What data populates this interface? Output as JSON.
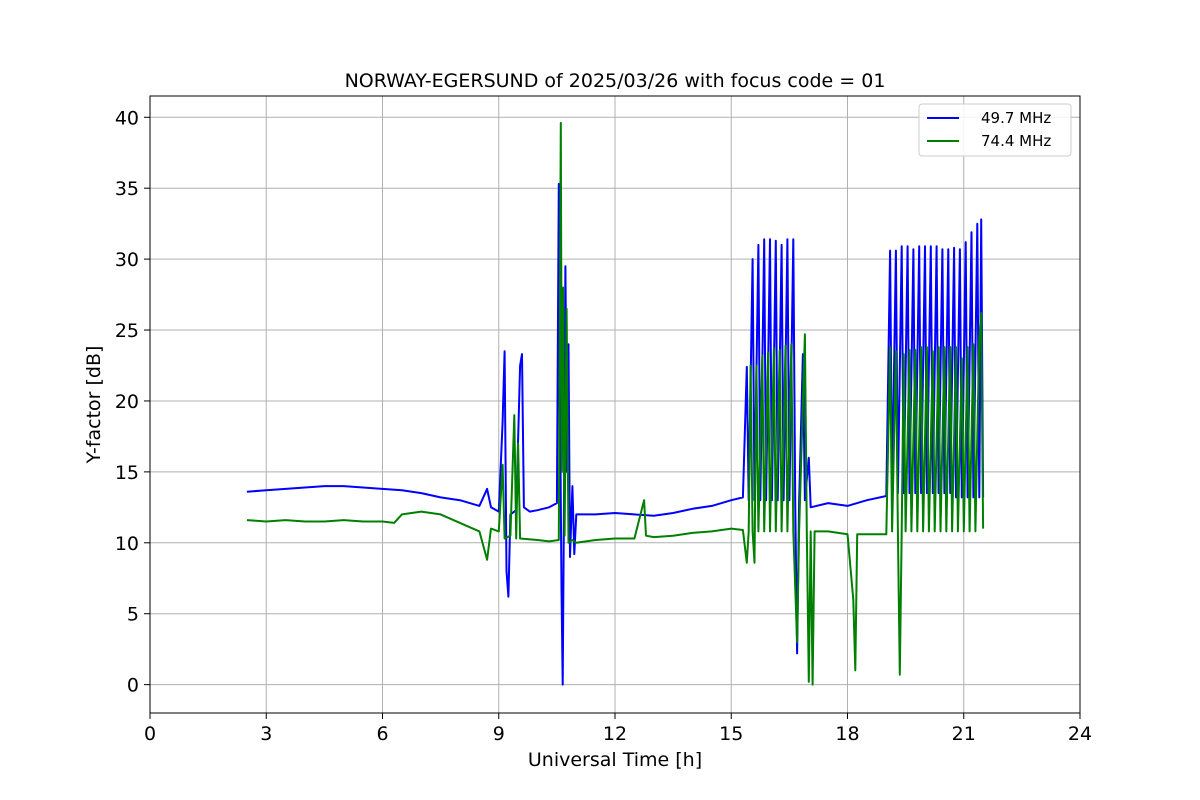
{
  "chart_data": {
    "type": "line",
    "title": "NORWAY-EGERSUND of 2025/03/26 with focus code = 01",
    "xlabel": "Universal Time [h]",
    "ylabel": "Y-factor [dB]",
    "xlim": [
      0,
      24
    ],
    "ylim": [
      -2,
      41.5
    ],
    "xticks": [
      0,
      3,
      6,
      9,
      12,
      15,
      18,
      21,
      24
    ],
    "yticks": [
      0,
      5,
      10,
      15,
      20,
      25,
      30,
      35,
      40
    ],
    "grid": true,
    "legend_position": "top-right",
    "series": [
      {
        "name": "49.7 MHz",
        "color": "#0000ff",
        "points": [
          [
            2.5,
            13.6
          ],
          [
            3.0,
            13.7
          ],
          [
            3.5,
            13.8
          ],
          [
            4.0,
            13.9
          ],
          [
            4.5,
            14.0
          ],
          [
            5.0,
            14.0
          ],
          [
            5.5,
            13.9
          ],
          [
            6.0,
            13.8
          ],
          [
            6.5,
            13.7
          ],
          [
            7.0,
            13.5
          ],
          [
            7.5,
            13.2
          ],
          [
            8.0,
            13.0
          ],
          [
            8.5,
            12.6
          ],
          [
            8.7,
            13.8
          ],
          [
            8.8,
            12.5
          ],
          [
            9.0,
            12.2
          ],
          [
            9.1,
            18.5
          ],
          [
            9.15,
            23.5
          ],
          [
            9.2,
            8.0
          ],
          [
            9.25,
            6.2
          ],
          [
            9.3,
            12.0
          ],
          [
            9.45,
            12.3
          ],
          [
            9.55,
            22.5
          ],
          [
            9.6,
            23.3
          ],
          [
            9.65,
            12.5
          ],
          [
            9.8,
            12.2
          ],
          [
            10.0,
            12.3
          ],
          [
            10.3,
            12.5
          ],
          [
            10.5,
            12.8
          ],
          [
            10.55,
            35.3
          ],
          [
            10.58,
            20.0
          ],
          [
            10.62,
            6.8
          ],
          [
            10.65,
            0.0
          ],
          [
            10.68,
            12.0
          ],
          [
            10.72,
            29.5
          ],
          [
            10.76,
            15.0
          ],
          [
            10.8,
            24.0
          ],
          [
            10.84,
            9.0
          ],
          [
            10.9,
            14.0
          ],
          [
            10.95,
            9.2
          ],
          [
            11.0,
            12.0
          ],
          [
            11.5,
            12.0
          ],
          [
            12.0,
            12.1
          ],
          [
            12.5,
            12.0
          ],
          [
            13.0,
            11.9
          ],
          [
            13.5,
            12.1
          ],
          [
            14.0,
            12.4
          ],
          [
            14.5,
            12.6
          ],
          [
            15.0,
            13.0
          ],
          [
            15.3,
            13.2
          ],
          [
            15.4,
            22.4
          ],
          [
            15.45,
            13.0
          ],
          [
            15.55,
            30.0
          ],
          [
            15.6,
            13.0
          ],
          [
            15.7,
            31.0
          ],
          [
            15.75,
            13.0
          ],
          [
            15.85,
            31.4
          ],
          [
            15.9,
            13.0
          ],
          [
            16.0,
            31.4
          ],
          [
            16.05,
            13.0
          ],
          [
            16.15,
            31.3
          ],
          [
            16.2,
            13.0
          ],
          [
            16.3,
            31.0
          ],
          [
            16.35,
            13.0
          ],
          [
            16.45,
            31.4
          ],
          [
            16.5,
            13.0
          ],
          [
            16.6,
            31.4
          ],
          [
            16.65,
            13.0
          ],
          [
            16.7,
            2.2
          ],
          [
            16.75,
            12.8
          ],
          [
            16.85,
            23.3
          ],
          [
            16.9,
            13.0
          ],
          [
            17.0,
            16.0
          ],
          [
            17.05,
            12.5
          ],
          [
            17.5,
            12.8
          ],
          [
            18.0,
            12.6
          ],
          [
            18.5,
            13.0
          ],
          [
            19.0,
            13.3
          ],
          [
            19.1,
            30.6
          ],
          [
            19.15,
            13.5
          ],
          [
            19.25,
            30.6
          ],
          [
            19.3,
            13.5
          ],
          [
            19.4,
            30.9
          ],
          [
            19.45,
            13.5
          ],
          [
            19.55,
            30.9
          ],
          [
            19.6,
            13.5
          ],
          [
            19.7,
            30.7
          ],
          [
            19.75,
            13.5
          ],
          [
            19.85,
            30.9
          ],
          [
            19.9,
            13.5
          ],
          [
            20.0,
            30.9
          ],
          [
            20.05,
            13.5
          ],
          [
            20.15,
            30.9
          ],
          [
            20.2,
            13.5
          ],
          [
            20.3,
            30.9
          ],
          [
            20.35,
            13.5
          ],
          [
            20.45,
            30.7
          ],
          [
            20.5,
            13.5
          ],
          [
            20.6,
            30.7
          ],
          [
            20.65,
            13.5
          ],
          [
            20.75,
            30.8
          ],
          [
            20.8,
            13.2
          ],
          [
            20.9,
            30.7
          ],
          [
            20.95,
            13.2
          ],
          [
            21.05,
            31.2
          ],
          [
            21.1,
            13.2
          ],
          [
            21.2,
            31.9
          ],
          [
            21.25,
            13.2
          ],
          [
            21.35,
            32.5
          ],
          [
            21.4,
            13.2
          ],
          [
            21.45,
            32.8
          ],
          [
            21.5,
            13.2
          ]
        ]
      },
      {
        "name": "74.4 MHz",
        "color": "#008000",
        "points": [
          [
            2.5,
            11.6
          ],
          [
            3.0,
            11.5
          ],
          [
            3.5,
            11.6
          ],
          [
            4.0,
            11.5
          ],
          [
            4.5,
            11.5
          ],
          [
            5.0,
            11.6
          ],
          [
            5.5,
            11.5
          ],
          [
            6.0,
            11.5
          ],
          [
            6.3,
            11.4
          ],
          [
            6.5,
            12.0
          ],
          [
            7.0,
            12.2
          ],
          [
            7.5,
            12.0
          ],
          [
            8.0,
            11.4
          ],
          [
            8.5,
            10.8
          ],
          [
            8.7,
            8.8
          ],
          [
            8.8,
            11.0
          ],
          [
            9.0,
            10.8
          ],
          [
            9.1,
            15.5
          ],
          [
            9.15,
            10.3
          ],
          [
            9.3,
            10.5
          ],
          [
            9.4,
            19.0
          ],
          [
            9.45,
            10.3
          ],
          [
            9.5,
            17.0
          ],
          [
            9.55,
            10.3
          ],
          [
            10.0,
            10.2
          ],
          [
            10.3,
            10.1
          ],
          [
            10.55,
            10.2
          ],
          [
            10.6,
            39.6
          ],
          [
            10.63,
            15.0
          ],
          [
            10.66,
            28.0
          ],
          [
            10.7,
            10.5
          ],
          [
            10.75,
            26.5
          ],
          [
            10.8,
            10.0
          ],
          [
            10.9,
            10.2
          ],
          [
            11.0,
            10.0
          ],
          [
            11.5,
            10.2
          ],
          [
            12.0,
            10.3
          ],
          [
            12.5,
            10.3
          ],
          [
            12.75,
            13.0
          ],
          [
            12.8,
            10.5
          ],
          [
            13.0,
            10.4
          ],
          [
            13.5,
            10.5
          ],
          [
            14.0,
            10.7
          ],
          [
            14.5,
            10.8
          ],
          [
            15.0,
            11.0
          ],
          [
            15.3,
            10.9
          ],
          [
            15.4,
            8.6
          ],
          [
            15.45,
            10.8
          ],
          [
            15.5,
            22.5
          ],
          [
            15.55,
            10.8
          ],
          [
            15.6,
            8.6
          ],
          [
            15.65,
            22.5
          ],
          [
            15.7,
            10.8
          ],
          [
            15.8,
            23.2
          ],
          [
            15.85,
            10.8
          ],
          [
            15.95,
            23.4
          ],
          [
            16.0,
            10.8
          ],
          [
            16.1,
            23.7
          ],
          [
            16.15,
            10.8
          ],
          [
            16.25,
            23.6
          ],
          [
            16.3,
            10.8
          ],
          [
            16.4,
            23.9
          ],
          [
            16.45,
            10.8
          ],
          [
            16.55,
            24.0
          ],
          [
            16.6,
            10.8
          ],
          [
            16.7,
            3.0
          ],
          [
            16.75,
            10.8
          ],
          [
            16.9,
            24.7
          ],
          [
            16.95,
            10.8
          ],
          [
            17.0,
            0.2
          ],
          [
            17.05,
            10.8
          ],
          [
            17.1,
            0.0
          ],
          [
            17.15,
            10.8
          ],
          [
            17.5,
            10.8
          ],
          [
            18.0,
            10.6
          ],
          [
            18.15,
            6.0
          ],
          [
            18.2,
            1.0
          ],
          [
            18.25,
            10.6
          ],
          [
            18.5,
            10.6
          ],
          [
            19.0,
            10.6
          ],
          [
            19.1,
            23.8
          ],
          [
            19.15,
            10.8
          ],
          [
            19.25,
            23.5
          ],
          [
            19.3,
            10.8
          ],
          [
            19.35,
            0.7
          ],
          [
            19.4,
            10.8
          ],
          [
            19.45,
            23.3
          ],
          [
            19.5,
            10.8
          ],
          [
            19.6,
            23.6
          ],
          [
            19.65,
            10.8
          ],
          [
            19.75,
            23.6
          ],
          [
            19.8,
            10.8
          ],
          [
            19.9,
            23.8
          ],
          [
            19.95,
            10.8
          ],
          [
            20.05,
            23.8
          ],
          [
            20.1,
            10.8
          ],
          [
            20.2,
            23.5
          ],
          [
            20.25,
            10.8
          ],
          [
            20.35,
            23.8
          ],
          [
            20.4,
            10.8
          ],
          [
            20.5,
            23.8
          ],
          [
            20.55,
            10.8
          ],
          [
            20.65,
            23.8
          ],
          [
            20.7,
            10.8
          ],
          [
            20.8,
            23.8
          ],
          [
            20.85,
            10.8
          ],
          [
            20.95,
            23.0
          ],
          [
            21.0,
            10.8
          ],
          [
            21.1,
            23.8
          ],
          [
            21.15,
            10.8
          ],
          [
            21.25,
            24.0
          ],
          [
            21.3,
            10.8
          ],
          [
            21.4,
            24.4
          ],
          [
            21.45,
            26.2
          ],
          [
            21.5,
            11.0
          ]
        ]
      }
    ]
  }
}
